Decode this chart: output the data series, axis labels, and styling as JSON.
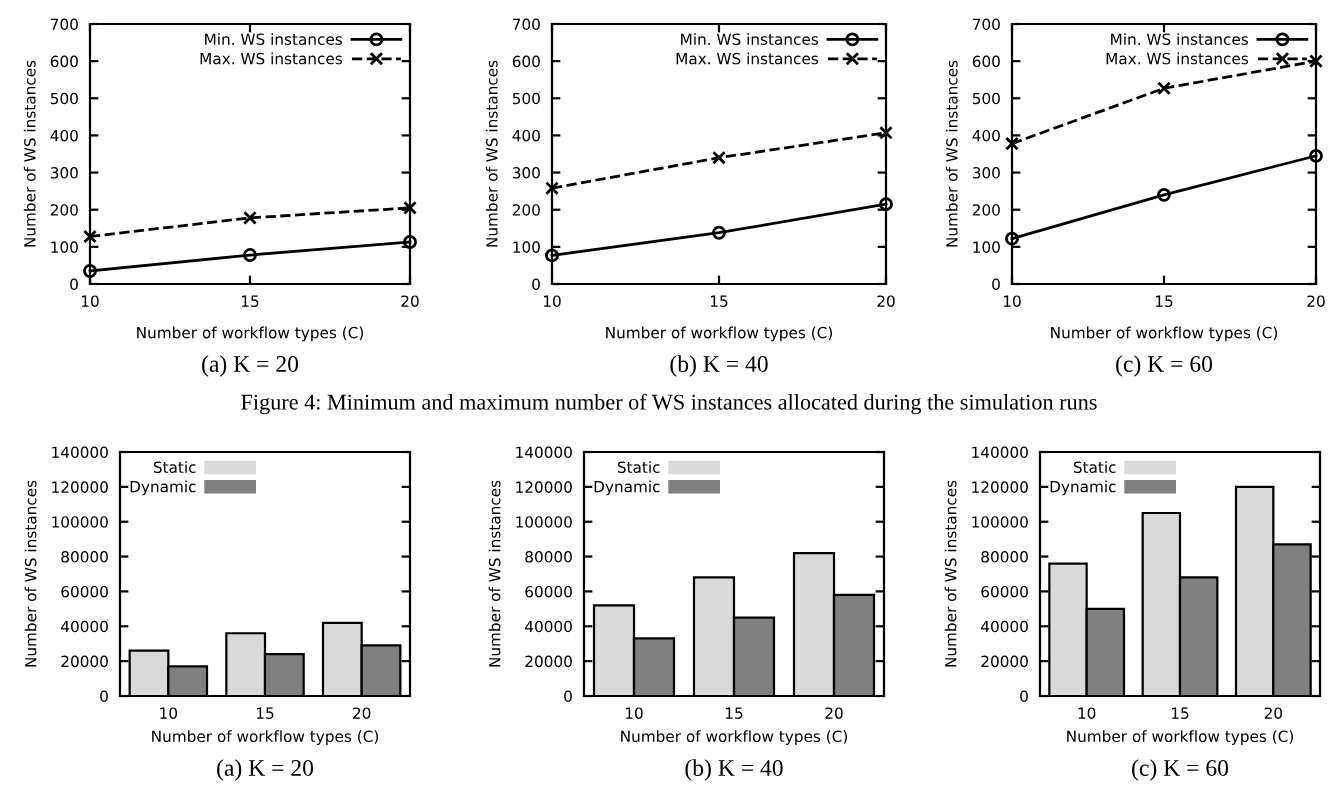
{
  "chart_data": [
    {
      "type": "line",
      "xlabel": "Number of workflow types (C)",
      "ylabel": "Number of WS instances",
      "x": [
        10,
        15,
        20
      ],
      "xlim": [
        10,
        20
      ],
      "xticks": [
        10,
        15,
        20
      ],
      "ylim": [
        0,
        700
      ],
      "yticks": [
        0,
        100,
        200,
        300,
        400,
        500,
        600,
        700
      ],
      "grid": false,
      "legend": "top right",
      "series": [
        {
          "name": "Min. WS instances",
          "color": "#000000",
          "marker": "circle",
          "line_style": "solid",
          "values": [
            35,
            78,
            113
          ]
        },
        {
          "name": "Max. WS instances",
          "color": "#000000",
          "marker": "cross",
          "line_style": "dashed",
          "values": [
            128,
            178,
            205
          ]
        }
      ],
      "annotations": [
        "(a) K = 20"
      ]
    },
    {
      "type": "line",
      "xlabel": "Number of workflow types (C)",
      "ylabel": "Number of WS instances",
      "x": [
        10,
        15,
        20
      ],
      "xlim": [
        10,
        20
      ],
      "xticks": [
        10,
        15,
        20
      ],
      "ylim": [
        0,
        700
      ],
      "yticks": [
        0,
        100,
        200,
        300,
        400,
        500,
        600,
        700
      ],
      "grid": false,
      "legend": "top right",
      "series": [
        {
          "name": "Min. WS instances",
          "color": "#000000",
          "marker": "circle",
          "line_style": "solid",
          "values": [
            77,
            138,
            215
          ]
        },
        {
          "name": "Max. WS instances",
          "color": "#000000",
          "marker": "cross",
          "line_style": "dashed",
          "values": [
            258,
            340,
            407
          ]
        }
      ],
      "annotations": [
        "(b) K = 40",
        "Figure 4: Minimum and maximum number of WS instances allocated during the simulation runs"
      ]
    },
    {
      "type": "line",
      "xlabel": "Number of workflow types (C)",
      "ylabel": "Number of WS instances",
      "x": [
        10,
        15,
        20
      ],
      "xlim": [
        10,
        20
      ],
      "xticks": [
        10,
        15,
        20
      ],
      "ylim": [
        0,
        700
      ],
      "yticks": [
        0,
        100,
        200,
        300,
        400,
        500,
        600,
        700
      ],
      "grid": false,
      "legend": "top right",
      "series": [
        {
          "name": "Min. WS instances",
          "color": "#000000",
          "marker": "circle",
          "line_style": "solid",
          "values": [
            122,
            240,
            345
          ]
        },
        {
          "name": "Max. WS instances",
          "color": "#000000",
          "marker": "cross",
          "line_style": "dashed",
          "values": [
            378,
            527,
            600
          ]
        }
      ],
      "annotations": [
        "(c) K = 60"
      ]
    },
    {
      "type": "bar",
      "xlabel": "Number of workflow types (C)",
      "ylabel": "Number of WS instances",
      "categories": [
        "10",
        "15",
        "20"
      ],
      "ylim": [
        0,
        140000
      ],
      "yticks": [
        0,
        20000,
        40000,
        60000,
        80000,
        100000,
        120000,
        140000
      ],
      "grid": false,
      "legend": "top left",
      "series": [
        {
          "name": "Static",
          "color": "#d9d9d9",
          "values": [
            26000,
            36000,
            42000
          ]
        },
        {
          "name": "Dynamic",
          "color": "#808080",
          "values": [
            17000,
            24000,
            29000
          ]
        }
      ],
      "annotations": [
        "(a) K = 20"
      ]
    },
    {
      "type": "bar",
      "xlabel": "Number of workflow types (C)",
      "ylabel": "Number of WS instances",
      "categories": [
        "10",
        "15",
        "20"
      ],
      "ylim": [
        0,
        140000
      ],
      "yticks": [
        0,
        20000,
        40000,
        60000,
        80000,
        100000,
        120000,
        140000
      ],
      "grid": false,
      "legend": "top left",
      "series": [
        {
          "name": "Static",
          "color": "#d9d9d9",
          "values": [
            52000,
            68000,
            82000
          ]
        },
        {
          "name": "Dynamic",
          "color": "#808080",
          "values": [
            33000,
            45000,
            58000
          ]
        }
      ],
      "annotations": [
        "(b) K = 40"
      ]
    },
    {
      "type": "bar",
      "xlabel": "Number of workflow types (C)",
      "ylabel": "Number of WS instances",
      "categories": [
        "10",
        "15",
        "20"
      ],
      "ylim": [
        0,
        140000
      ],
      "yticks": [
        0,
        20000,
        40000,
        60000,
        80000,
        100000,
        120000,
        140000
      ],
      "grid": false,
      "legend": "top left",
      "series": [
        {
          "name": "Static",
          "color": "#d9d9d9",
          "values": [
            76000,
            105000,
            120000
          ]
        },
        {
          "name": "Dynamic",
          "color": "#808080",
          "values": [
            50000,
            68000,
            87000
          ]
        }
      ],
      "annotations": [
        "(c) K = 60"
      ]
    }
  ]
}
